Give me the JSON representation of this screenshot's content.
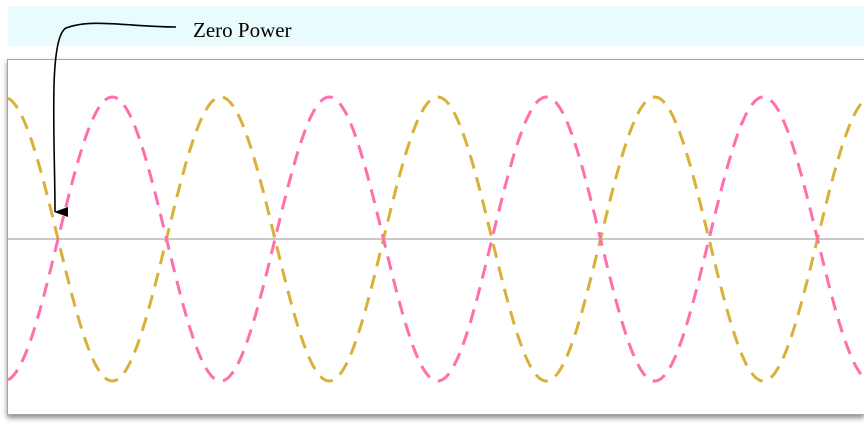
{
  "annotation": {
    "label": "Zero Power"
  },
  "colors": {
    "header_band": "#eafbfd",
    "wave_a": "#d9b13a",
    "wave_b": "#ff6fae",
    "zero_line": "#a9a9a9",
    "arrow": "#000000"
  }
}
